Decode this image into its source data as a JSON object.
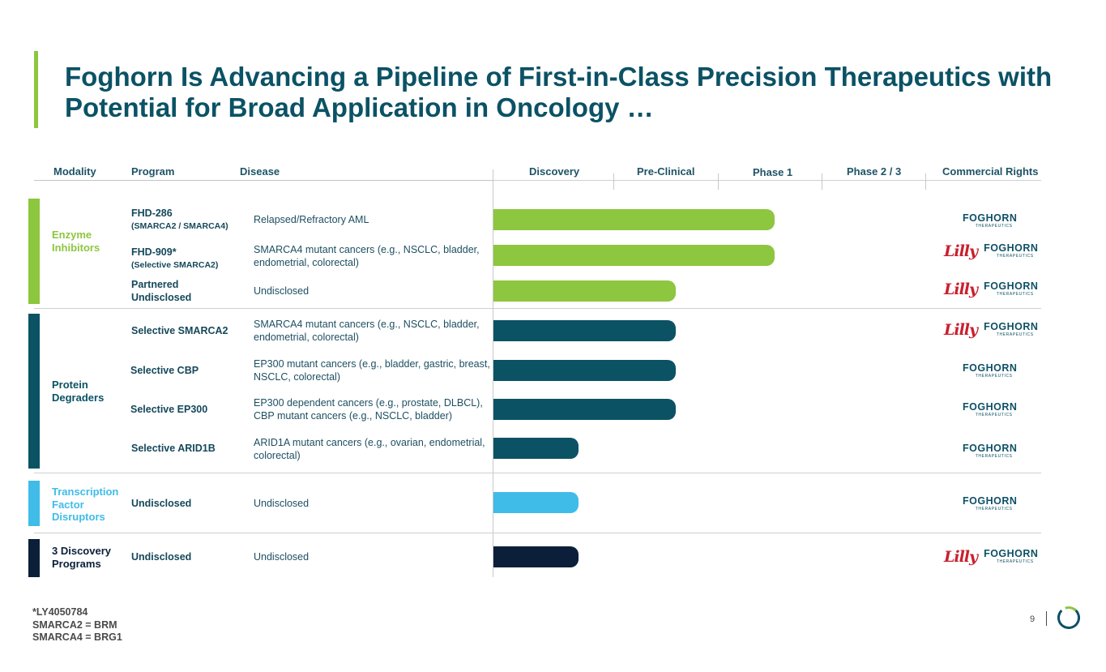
{
  "title": "Foghorn Is Advancing a Pipeline of First-in-Class Precision Therapeutics with Potential for Broad Application in Oncology …",
  "headers": {
    "modality": "Modality",
    "program": "Program",
    "disease": "Disease",
    "discovery": "Discovery",
    "preclinical": "Pre-Clinical",
    "phase1": "Phase 1",
    "phase23": "Phase 2 / 3",
    "rights": "Commercial Rights"
  },
  "modalities": {
    "enzyme": "Enzyme Inhibitors",
    "degraders": "Protein Degraders",
    "tfd": "Transcription Factor Disruptors",
    "discovery": "3 Discovery Programs"
  },
  "colors": {
    "enzyme": "#8dc63f",
    "degraders": "#0b5265",
    "tfd": "#3fbce7",
    "discovery": "#0b1f3a"
  },
  "rows": [
    {
      "program": "FHD-286",
      "program_sub": "(SMARCA2 / SMARCA4)",
      "disease": "Relapsed/Refractory AML",
      "stage_progress": 2.7,
      "rights": "Foghorn"
    },
    {
      "program": "FHD-909*",
      "program_sub": "(Selective SMARCA2)",
      "disease": "SMARCA4 mutant cancers (e.g., NSCLC, bladder, endometrial, colorectal)",
      "stage_progress": 2.7,
      "rights": "Lilly / Foghorn"
    },
    {
      "program": "Partnered Undisclosed",
      "program_sub": "",
      "disease": "Undisclosed",
      "stage_progress": 1.75,
      "rights": "Lilly / Foghorn"
    },
    {
      "program": "Selective SMARCA2",
      "program_sub": "",
      "disease": "SMARCA4 mutant cancers (e.g., NSCLC, bladder, endometrial, colorectal)",
      "stage_progress": 1.75,
      "rights": "Lilly / Foghorn"
    },
    {
      "program": "Selective CBP",
      "program_sub": "",
      "disease": "EP300 mutant cancers (e.g., bladder, gastric, breast, NSCLC, colorectal)",
      "stage_progress": 1.75,
      "rights": "Foghorn"
    },
    {
      "program": "Selective EP300",
      "program_sub": "",
      "disease": "EP300 dependent cancers (e.g., prostate, DLBCL), CBP mutant cancers (e.g., NSCLC, bladder)",
      "stage_progress": 1.75,
      "rights": "Foghorn"
    },
    {
      "program": "Selective ARID1B",
      "program_sub": "",
      "disease": "ARID1A mutant cancers (e.g., ovarian, endometrial, colorectal)",
      "stage_progress": 0.82,
      "rights": "Foghorn"
    },
    {
      "program": "Undisclosed",
      "program_sub": "",
      "disease": "Undisclosed",
      "stage_progress": 0.82,
      "rights": "Foghorn"
    },
    {
      "program": "Undisclosed",
      "program_sub": "",
      "disease": "Undisclosed",
      "stage_progress": 0.82,
      "rights": "Lilly / Foghorn"
    }
  ],
  "logo": {
    "lilly": "Lilly",
    "foghorn": "FOGHORN",
    "foghorn_sub": "THERAPEUTICS"
  },
  "footnotes": [
    "*LY4050784",
    "SMARCA2 = BRM",
    "SMARCA4 = BRG1"
  ],
  "page_number": "9"
}
